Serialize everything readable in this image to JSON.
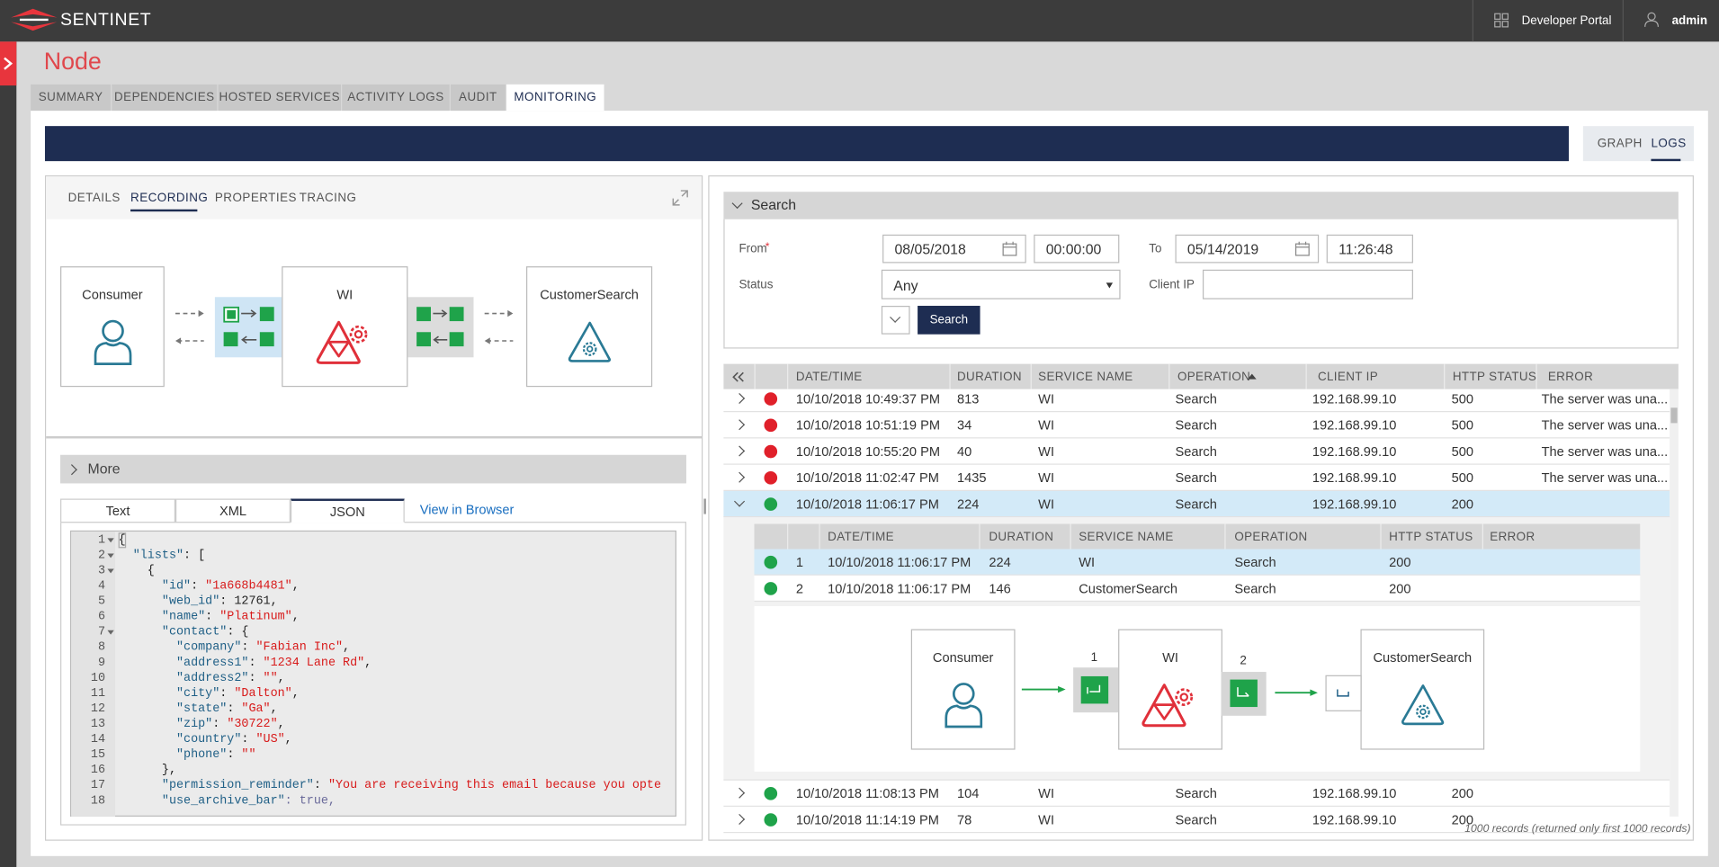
{
  "header": {
    "brand": "SENTINET",
    "developer_portal": "Developer Portal",
    "user": "admin"
  },
  "page_title": "Node",
  "tabs": [
    "SUMMARY",
    "DEPENDENCIES",
    "HOSTED SERVICES",
    "ACTIVITY LOGS",
    "AUDIT",
    "MONITORING"
  ],
  "view_toggle": [
    "GRAPH",
    "LOGS"
  ],
  "left_tabs": [
    "DETAILS",
    "RECORDING",
    "PROPERTIES",
    "TRACING"
  ],
  "diagram": {
    "nodes": [
      "Consumer",
      "WI",
      "CustomerSearch"
    ]
  },
  "more": "More",
  "format_tabs": [
    "Text",
    "XML",
    "JSON"
  ],
  "view_in_browser": "View in Browser",
  "code": {
    "numbers": [
      1,
      2,
      3,
      4,
      5,
      6,
      7,
      8,
      9,
      10,
      11,
      12,
      13,
      14,
      15,
      16,
      17,
      18
    ],
    "lines": [
      "{",
      "  \"lists\": [",
      "    {",
      "      \"id\": \"1a668b4481\",",
      "      \"web_id\": 12761,",
      "      \"name\": \"Platinum\",",
      "      \"contact\": {",
      "        \"company\": \"Fabian Inc\",",
      "        \"address1\": \"1234 Lane Rd\",",
      "        \"address2\": \"\",",
      "        \"city\": \"Dalton\",",
      "        \"state\": \"Ga\",",
      "        \"zip\": \"30722\",",
      "        \"country\": \"US\",",
      "        \"phone\": \"\"",
      "      },",
      "      \"permission_reminder\": \"You are receiving this email because you opte",
      "      \"use_archive_bar\": true,"
    ]
  },
  "search": {
    "title": "Search",
    "from_label": "From",
    "required": "*",
    "from_date": "08/05/2018",
    "from_time": "00:00:00",
    "to_label": "To",
    "to_date": "05/14/2019",
    "to_time": "11:26:48",
    "status_label": "Status",
    "status_value": "Any",
    "client_ip_label": "Client IP",
    "button": "Search"
  },
  "table": {
    "columns": [
      "DATE/TIME",
      "DURATION",
      "SERVICE NAME",
      "OPERATION",
      "CLIENT IP",
      "HTTP STATUS",
      "ERROR"
    ],
    "rows": [
      {
        "ok": false,
        "cells": [
          "10/10/2018 10:49:37 PM",
          813,
          "WI",
          "Search",
          "192.168.99.10",
          500,
          "The server was una..."
        ]
      },
      {
        "ok": false,
        "cells": [
          "10/10/2018 10:51:19 PM",
          34,
          "WI",
          "Search",
          "192.168.99.10",
          500,
          "The server was una..."
        ]
      },
      {
        "ok": false,
        "cells": [
          "10/10/2018 10:55:20 PM",
          40,
          "WI",
          "Search",
          "192.168.99.10",
          500,
          "The server was una..."
        ]
      },
      {
        "ok": false,
        "cells": [
          "10/10/2018 11:02:47 PM",
          1435,
          "WI",
          "Search",
          "192.168.99.10",
          500,
          "The server was una..."
        ]
      },
      {
        "ok": true,
        "expanded": true,
        "cells": [
          "10/10/2018 11:06:17 PM",
          224,
          "WI",
          "Search",
          "192.168.99.10",
          200
        ]
      },
      {
        "ok": true,
        "cells": [
          "10/10/2018 11:08:13 PM",
          104,
          "WI",
          "Search",
          "192.168.99.10",
          200
        ]
      },
      {
        "ok": true,
        "cells": [
          "10/10/2018 11:14:19 PM",
          78,
          "WI",
          "Search",
          "192.168.99.10",
          200
        ]
      }
    ]
  },
  "sub_table": {
    "columns": [
      "DATE/TIME",
      "DURATION",
      "SERVICE NAME",
      "OPERATION",
      "HTTP STATUS",
      "ERROR"
    ],
    "rows": [
      [
        1,
        "10/10/2018 11:06:17 PM",
        224,
        "WI",
        "Search",
        200
      ],
      [
        2,
        "10/10/2018 11:06:17 PM",
        146,
        "CustomerSearch",
        "Search",
        200
      ]
    ]
  },
  "trace": {
    "nodes": [
      "Consumer",
      "WI",
      "CustomerSearch"
    ],
    "steps": [
      1,
      2
    ]
  },
  "footer": "1000 records (returned only first 1000 records)"
}
